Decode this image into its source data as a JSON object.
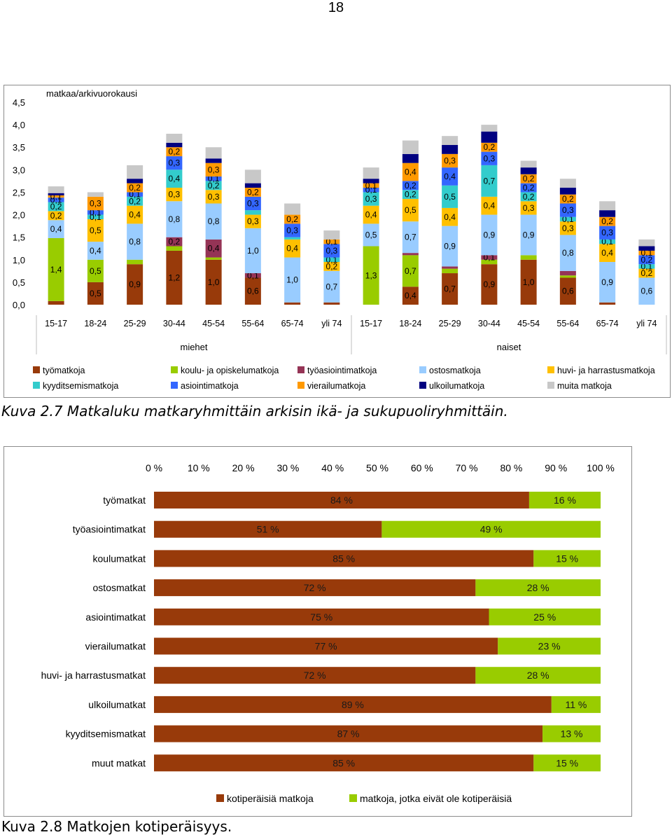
{
  "page_number": "18",
  "figure1": {
    "caption": "Kuva 2.7 Matkaluku matkaryhmittäin arkisin ikä- ja sukupuoliryhmittäin.",
    "chart_data": {
      "type": "bar",
      "stacked": true,
      "ylabel": "matkaa/arkivuorokausi",
      "ylim": [
        0,
        4.5
      ],
      "ytick_labels": [
        "0,0",
        "0,5",
        "1,0",
        "1,5",
        "2,0",
        "2,5",
        "3,0",
        "3,5",
        "4,0",
        "4,5"
      ],
      "ytick_values": [
        0,
        0.5,
        1,
        1.5,
        2,
        2.5,
        3,
        3.5,
        4,
        4.5
      ],
      "groups": [
        {
          "label": "miehet",
          "start": 0,
          "count": 8
        },
        {
          "label": "naiset",
          "start": 8,
          "count": 8
        }
      ],
      "categories": [
        "15-17",
        "18-24",
        "25-29",
        "30-44",
        "45-54",
        "55-64",
        "65-74",
        "yli 74",
        "15-17",
        "18-24",
        "25-29",
        "30-44",
        "45-54",
        "55-64",
        "65-74",
        "yli 74"
      ],
      "series": [
        {
          "name": "työmatkoja",
          "color": "#983a0a",
          "values": [
            0.08,
            0.5,
            0.9,
            1.2,
            1.0,
            0.6,
            0.05,
            0.05,
            0.0,
            0.4,
            0.7,
            0.9,
            1.0,
            0.6,
            0.05,
            0.0
          ],
          "labels": [
            "",
            "0,5",
            "0,9",
            "1,2",
            "1,0",
            "0,6",
            "",
            "",
            "",
            "0,4",
            "0,7",
            "0,9",
            "1,0",
            "0,6",
            "",
            ""
          ]
        },
        {
          "name": "koulu- ja opiskelumatkoja",
          "color": "#99cc00",
          "values": [
            1.4,
            0.5,
            0.1,
            0.1,
            0.05,
            0.0,
            0.0,
            0.0,
            1.3,
            0.7,
            0.1,
            0.1,
            0.1,
            0.05,
            0.0,
            0.0
          ],
          "labels": [
            "1,4",
            "0,5",
            "",
            "",
            "",
            "",
            "",
            "",
            "1,3",
            "0,7",
            "",
            "",
            "",
            "",
            "",
            ""
          ]
        },
        {
          "name": "työasiointimatkoja",
          "color": "#953456",
          "values": [
            0.0,
            0.0,
            0.0,
            0.2,
            0.4,
            0.1,
            0.0,
            0.0,
            0.0,
            0.05,
            0.05,
            0.1,
            0.0,
            0.1,
            0.0,
            0.0
          ],
          "labels": [
            "",
            "",
            "",
            "0,2",
            "0,4",
            "0,1",
            "",
            "",
            "",
            "",
            "",
            "0,1",
            "",
            "",
            "",
            ""
          ]
        },
        {
          "name": "ostosmatkoja",
          "color": "#99ccff",
          "values": [
            0.4,
            0.4,
            0.8,
            0.8,
            0.8,
            1.0,
            1.0,
            0.7,
            0.5,
            0.7,
            0.9,
            0.9,
            0.9,
            0.8,
            0.9,
            0.6
          ],
          "labels": [
            "0,4",
            "0,4",
            "0,8",
            "0,8",
            "0,8",
            "1,0",
            "1,0",
            "0,7",
            "0,5",
            "0,7",
            "0,9",
            "0,9",
            "0,9",
            "0,8",
            "0,9",
            "0,6"
          ]
        },
        {
          "name": "huvi- ja harrastusmatkoja",
          "color": "#ffc000",
          "values": [
            0.2,
            0.5,
            0.4,
            0.3,
            0.3,
            0.3,
            0.4,
            0.2,
            0.4,
            0.5,
            0.4,
            0.4,
            0.3,
            0.3,
            0.4,
            0.2
          ],
          "labels": [
            "0,2",
            "0,5",
            "0,4",
            "0,3",
            "0,3",
            "0,3",
            "0,4",
            "0,2",
            "0,4",
            "0,5",
            "0,4",
            "0,4",
            "0,3",
            "0,3",
            "0,4",
            "0,2"
          ]
        },
        {
          "name": "kyyditsemismatkoja",
          "color": "#33cccc",
          "values": [
            0.2,
            0.1,
            0.2,
            0.4,
            0.2,
            0.1,
            0.05,
            0.1,
            0.3,
            0.2,
            0.5,
            0.7,
            0.2,
            0.1,
            0.1,
            0.1
          ],
          "labels": [
            "0,2",
            "0,1",
            "0,2",
            "0,4",
            "0,2",
            "",
            "",
            "0,1",
            "0,3",
            "0,2",
            "0,5",
            "0,7",
            "0,2",
            "0,1",
            "0,1",
            "0,1"
          ]
        },
        {
          "name": "asiointimatkoja",
          "color": "#3366ff",
          "values": [
            0.1,
            0.1,
            0.1,
            0.3,
            0.1,
            0.3,
            0.3,
            0.3,
            0.1,
            0.2,
            0.4,
            0.3,
            0.2,
            0.3,
            0.3,
            0.2
          ],
          "labels": [
            "0,1",
            "0,1",
            "0,1",
            "0,3",
            "0,1",
            "0,3",
            "0,3",
            "0,3",
            "0,1",
            "0,2",
            "0,4",
            "0,3",
            "0,2",
            "0,3",
            "0,3",
            "0,2"
          ]
        },
        {
          "name": "vierailumatkoja",
          "color": "#ff9900",
          "values": [
            0.05,
            0.3,
            0.2,
            0.2,
            0.3,
            0.2,
            0.2,
            0.1,
            0.1,
            0.4,
            0.3,
            0.2,
            0.2,
            0.2,
            0.2,
            0.1
          ],
          "labels": [
            "0,1",
            "0,3",
            "0,2",
            "0,2",
            "0,3",
            "0,2",
            "0,2",
            "0,1",
            "0,1",
            "0,4",
            "0,3",
            "0,2",
            "0,2",
            "0,2",
            "0,2",
            "0,1"
          ]
        },
        {
          "name": "ulkoilumatkoja",
          "color": "#000080",
          "values": [
            0.05,
            0.0,
            0.1,
            0.1,
            0.1,
            0.1,
            0.0,
            0.0,
            0.1,
            0.2,
            0.2,
            0.25,
            0.15,
            0.15,
            0.15,
            0.1
          ],
          "labels": [
            "",
            "",
            "",
            "",
            "",
            "",
            "",
            "",
            "",
            "",
            "",
            "",
            "",
            "",
            "",
            ""
          ]
        },
        {
          "name": "muita matkoja",
          "color": "#c8c8c8",
          "values": [
            0.15,
            0.1,
            0.3,
            0.2,
            0.25,
            0.3,
            0.25,
            0.2,
            0.25,
            0.3,
            0.2,
            0.15,
            0.15,
            0.2,
            0.2,
            0.15
          ],
          "labels": [
            "",
            "",
            "",
            "",
            "",
            "",
            "",
            "",
            "",
            "",
            "",
            "",
            "",
            "",
            "",
            ""
          ]
        }
      ]
    }
  },
  "figure2": {
    "caption": "Kuva 2.8 Matkojen kotiperäisyys.",
    "chart_data": {
      "type": "bar",
      "orientation": "horizontal",
      "stacked": true,
      "percent": true,
      "xlim": [
        0,
        100
      ],
      "xtick_labels": [
        "0 %",
        "10 %",
        "20 %",
        "30 %",
        "40 %",
        "50 %",
        "60 %",
        "70 %",
        "80 %",
        "90 %",
        "100 %"
      ],
      "categories": [
        "työmatkat",
        "työasiointimatkat",
        "koulumatkat",
        "ostosmatkat",
        "asiointimatkat",
        "vierailumatkat",
        "huvi- ja harrastusmatkat",
        "ulkoilumatkat",
        "kyyditsemismatkat",
        "muut matkat"
      ],
      "series": [
        {
          "name": "kotiperäisiä matkoja",
          "color": "#983a0a",
          "values": [
            84,
            51,
            85,
            72,
            75,
            77,
            72,
            89,
            87,
            85
          ],
          "labels": [
            "84 %",
            "51 %",
            "85 %",
            "72 %",
            "75 %",
            "77 %",
            "72 %",
            "89 %",
            "87 %",
            "85 %"
          ]
        },
        {
          "name": "matkoja, jotka eivät ole kotiperäisiä",
          "color": "#99cc00",
          "values": [
            16,
            49,
            15,
            28,
            25,
            23,
            28,
            11,
            13,
            15
          ],
          "labels": [
            "16 %",
            "49 %",
            "15 %",
            "28 %",
            "25 %",
            "23 %",
            "28 %",
            "11 %",
            "13 %",
            "15 %"
          ]
        }
      ]
    }
  }
}
